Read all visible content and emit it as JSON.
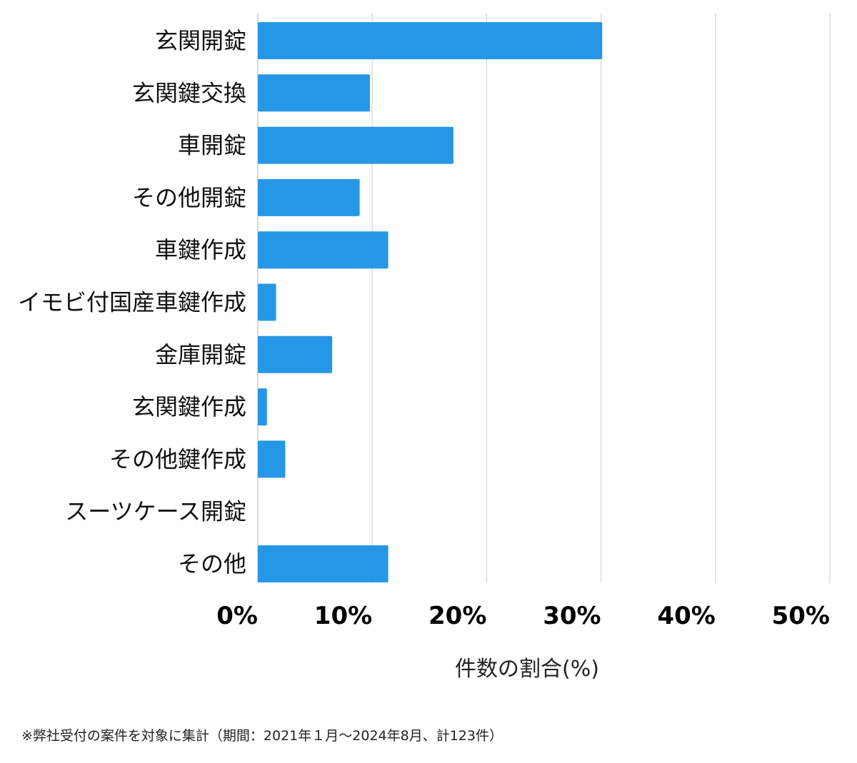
{
  "chart_data": {
    "type": "bar",
    "orientation": "horizontal",
    "categories": [
      "玄関開錠",
      "玄関鍵交換",
      "車開錠",
      "その他開錠",
      "車鍵作成",
      "イモビ付国産車鍵作成",
      "金庫開錠",
      "玄関鍵作成",
      "その他鍵作成",
      "スーツケース開錠",
      "その他"
    ],
    "values": [
      30.1,
      9.8,
      17.1,
      8.9,
      11.4,
      1.6,
      6.5,
      0.8,
      2.4,
      0,
      11.4
    ],
    "xlabel": "件数の割合(%)",
    "ylabel": "",
    "xlim": [
      0,
      50
    ],
    "xticks": [
      "0%",
      "10%",
      "20%",
      "30%",
      "40%",
      "50%"
    ],
    "grid": true,
    "bar_color": "#2697e6"
  },
  "footnote": "※弊社受付の案件を対象に集計（期間：2021年１月〜2024年8月、計123件）"
}
